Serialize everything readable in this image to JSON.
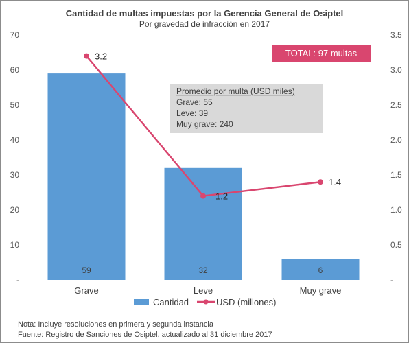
{
  "chart_data": {
    "type": "bar",
    "title": "Cantidad de multas impuestas por la Gerencia General de Osiptel",
    "subtitle": "Por gravedad de infracción en 2017",
    "categories": [
      "Grave",
      "Leve",
      "Muy grave"
    ],
    "series": [
      {
        "name": "Cantidad",
        "type": "bar",
        "axis": "left",
        "color": "#5b9bd5",
        "values": [
          59,
          32,
          6
        ],
        "labels": [
          "59",
          "32",
          "6"
        ]
      },
      {
        "name": "USD (millones)",
        "type": "line",
        "axis": "right",
        "color": "#d9466f",
        "values": [
          3.2,
          1.2,
          1.4
        ],
        "labels": [
          "3.2",
          "1.2",
          "1.4"
        ]
      }
    ],
    "y_left": {
      "min": 0,
      "max": 70,
      "step": 10,
      "ticks": [
        "-",
        "10",
        "20",
        "30",
        "40",
        "50",
        "60",
        "70"
      ]
    },
    "y_right": {
      "min": 0,
      "max": 3.5,
      "step": 0.5,
      "ticks": [
        "-",
        "0.5",
        "1.0",
        "1.5",
        "2.0",
        "2.5",
        "3.0",
        "3.5"
      ]
    },
    "grid": false,
    "legend": "bottom",
    "total_badge": {
      "text": "TOTAL:  97 multas",
      "color": "#d9466f"
    },
    "info_box": {
      "title": "Promedio por multa (USD miles)",
      "lines": [
        "Grave:  55",
        "Leve:  39",
        "Muy grave:  240"
      ],
      "color": "#d9d9d9"
    },
    "notes": [
      "Nota: Incluye resoluciones en primera y segunda instancia",
      "Fuente: Registro de Sanciones de Osiptel, actualizado al 31 diciembre 2017"
    ]
  }
}
